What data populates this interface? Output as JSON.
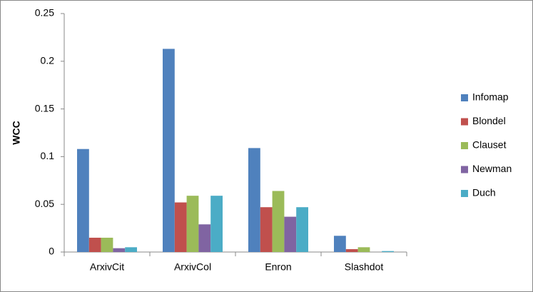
{
  "chart_data": {
    "type": "bar",
    "y_label": "WCC",
    "categories": [
      "ArxivCit",
      "ArxivCol",
      "Enron",
      "Slashdot"
    ],
    "series": [
      {
        "name": "Infomap",
        "color": "#4f81bd",
        "values": [
          0.108,
          0.213,
          0.109,
          0.017
        ]
      },
      {
        "name": "Blondel",
        "color": "#c0504d",
        "values": [
          0.015,
          0.052,
          0.047,
          0.003
        ]
      },
      {
        "name": "Clauset",
        "color": "#9bbb59",
        "values": [
          0.015,
          0.059,
          0.064,
          0.005
        ]
      },
      {
        "name": "Newman",
        "color": "#8064a2",
        "values": [
          0.004,
          0.029,
          0.037,
          0
        ]
      },
      {
        "name": "Duch",
        "color": "#4bacc6",
        "values": [
          0.005,
          0.059,
          0.047,
          0.001
        ]
      }
    ],
    "ylim": [
      0,
      0.25
    ],
    "yticks": [
      0,
      0.05,
      0.1,
      0.15,
      0.2,
      0.25
    ],
    "legend": "right"
  }
}
